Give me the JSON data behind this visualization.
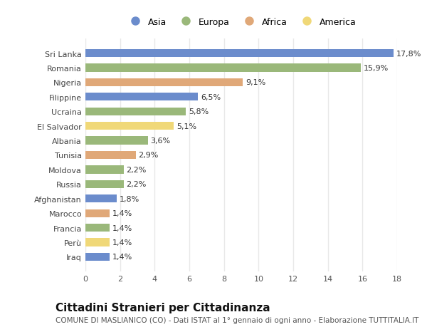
{
  "categories": [
    "Sri Lanka",
    "Romania",
    "Nigeria",
    "Filippine",
    "Ucraina",
    "El Salvador",
    "Albania",
    "Tunisia",
    "Moldova",
    "Russia",
    "Afghanistan",
    "Marocco",
    "Francia",
    "Perù",
    "Iraq"
  ],
  "values": [
    17.8,
    15.9,
    9.1,
    6.5,
    5.8,
    5.1,
    3.6,
    2.9,
    2.2,
    2.2,
    1.8,
    1.4,
    1.4,
    1.4,
    1.4
  ],
  "continents": [
    "Asia",
    "Europa",
    "Africa",
    "Asia",
    "Europa",
    "America",
    "Europa",
    "Africa",
    "Europa",
    "Europa",
    "Asia",
    "Africa",
    "Europa",
    "America",
    "Asia"
  ],
  "colors": {
    "Asia": "#6b8ccc",
    "Europa": "#9ab87a",
    "Africa": "#e0a878",
    "America": "#f0d878"
  },
  "legend_order": [
    "Asia",
    "Europa",
    "Africa",
    "America"
  ],
  "xlim": [
    0,
    18
  ],
  "xticks": [
    0,
    2,
    4,
    6,
    8,
    10,
    12,
    14,
    16,
    18
  ],
  "title": "Cittadini Stranieri per Cittadinanza",
  "subtitle": "COMUNE DI MASLIANICO (CO) - Dati ISTAT al 1° gennaio di ogni anno - Elaborazione TUTTITALIA.IT",
  "background_color": "#ffffff",
  "grid_color": "#e8e8e8",
  "bar_height": 0.55,
  "label_fontsize": 8.0,
  "tick_fontsize": 8.0,
  "title_fontsize": 11,
  "subtitle_fontsize": 7.5
}
